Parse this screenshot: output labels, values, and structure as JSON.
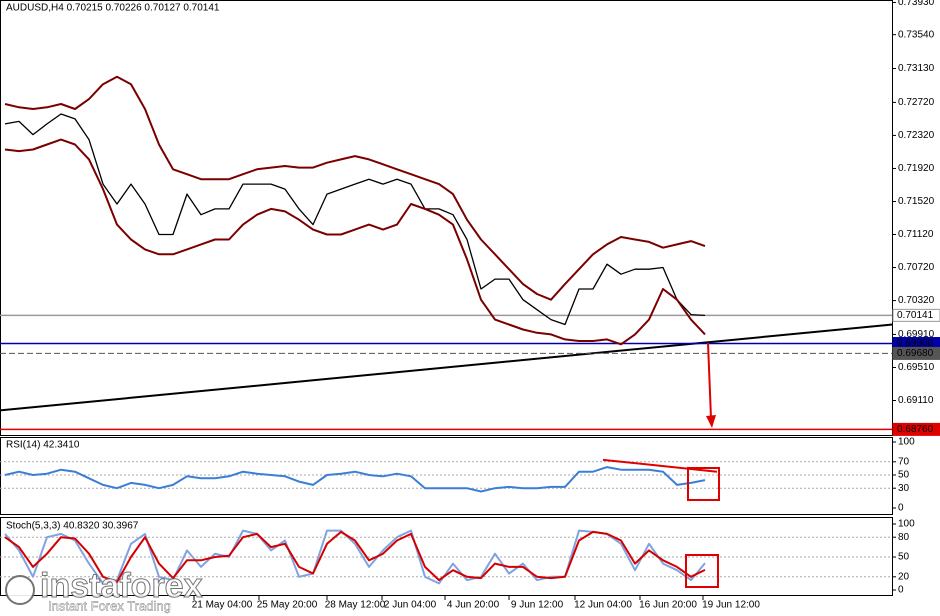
{
  "title": "AUDUSD,H4 0.70215 0.70226 0.70127 0.70141",
  "watermark": {
    "brand": "instaforex",
    "slogan": "Instant Forex Trading"
  },
  "time_labels": [
    "21 May 04:00",
    "25 May 20:00",
    "28 May 12:00",
    "2 Jun 04:00",
    "4 Jun 20:00",
    "9 Jun 12:00",
    "12 Jun 04:00",
    "16 Jun 20:00",
    "19 Jun 12:00"
  ],
  "chart_data": [
    {
      "type": "line",
      "series": [
        {
          "color": "#000000",
          "values": [
            0.7246,
            0.7249,
            0.7233,
            0.7246,
            0.7258,
            0.7252,
            0.7227,
            0.7173,
            0.7149,
            0.7173,
            0.7149,
            0.7112,
            0.7112,
            0.7161,
            0.7136,
            0.7143,
            0.7143,
            0.7173,
            0.7173,
            0.7173,
            0.7167,
            0.7143,
            0.7124,
            0.7161,
            0.7167,
            0.7173,
            0.7179,
            0.7173,
            0.7179,
            0.7173,
            0.7143,
            0.7143,
            0.7136,
            0.7106,
            0.7046,
            0.7058,
            0.7058,
            0.7033,
            0.7021,
            0.7009,
            0.7003,
            0.7046,
            0.7046,
            0.7076,
            0.7064,
            0.707,
            0.707,
            0.7072,
            0.7033,
            0.7015,
            0.70141
          ]
        },
        {
          "color": "#7a0000",
          "values": [
            0.727,
            0.7266,
            0.7264,
            0.7266,
            0.727,
            0.7264,
            0.7276,
            0.7294,
            0.7303,
            0.7294,
            0.7264,
            0.7221,
            0.7191,
            0.7185,
            0.7179,
            0.7179,
            0.7179,
            0.7185,
            0.7191,
            0.7193,
            0.7195,
            0.7193,
            0.7193,
            0.7199,
            0.7203,
            0.7207,
            0.7203,
            0.7197,
            0.7191,
            0.7185,
            0.7179,
            0.7173,
            0.7161,
            0.713,
            0.7106,
            0.7088,
            0.707,
            0.7052,
            0.704,
            0.7033,
            0.7052,
            0.707,
            0.7088,
            0.71,
            0.7109,
            0.7106,
            0.7103,
            0.7096,
            0.71,
            0.7104,
            0.7098
          ]
        },
        {
          "color": "#7a0000",
          "values": [
            0.7215,
            0.7213,
            0.7215,
            0.7221,
            0.7227,
            0.7221,
            0.7203,
            0.7167,
            0.7124,
            0.7106,
            0.7094,
            0.7088,
            0.7088,
            0.7094,
            0.71,
            0.7106,
            0.7106,
            0.7124,
            0.7136,
            0.7143,
            0.714,
            0.713,
            0.7118,
            0.7112,
            0.7112,
            0.7118,
            0.7124,
            0.7118,
            0.7124,
            0.7149,
            0.7143,
            0.7136,
            0.7124,
            0.7082,
            0.7033,
            0.7009,
            0.7003,
            0.6997,
            0.6993,
            0.6991,
            0.6985,
            0.6983,
            0.6983,
            0.6985,
            0.6979,
            0.6991,
            0.7009,
            0.7046,
            0.7033,
            0.7009,
            0.6991
          ]
        }
      ],
      "levels": [
        {
          "value": 0.70141,
          "label": "0.70141",
          "color": "#9a9a9a",
          "text_color": "#000000"
        },
        {
          "value": 0.698,
          "label": "0.69800",
          "color": "#0000aa",
          "text_color": "#ffffff"
        },
        {
          "value": 0.6968,
          "label": "0.69680",
          "color": "#555555",
          "text_color": "#ffffff",
          "style": "dashed"
        },
        {
          "value": 0.6876,
          "label": "0.68760",
          "color": "#e00000",
          "text_color": "#ffffff"
        }
      ],
      "trendline": {
        "color": "#000000",
        "values": [
          0.6899,
          0.7003
        ]
      },
      "ylim": [
        0.6868,
        0.7396
      ],
      "yticks": [
        {
          "value": 0.7393,
          "label": "0.73930"
        },
        {
          "value": 0.7354,
          "label": "0.73540"
        },
        {
          "value": 0.7313,
          "label": "0.73130"
        },
        {
          "value": 0.7272,
          "label": "0.72720"
        },
        {
          "value": 0.7232,
          "label": "0.72320"
        },
        {
          "value": 0.7192,
          "label": "0.71920"
        },
        {
          "value": 0.7152,
          "label": "0.71520"
        },
        {
          "value": 0.7112,
          "label": "0.71120"
        },
        {
          "value": 0.7072,
          "label": "0.70720"
        },
        {
          "value": 0.7032,
          "label": "0.70320"
        },
        {
          "value": 0.6991,
          "label": "0.69910"
        },
        {
          "value": 0.6951,
          "label": "0.69510"
        },
        {
          "value": 0.6911,
          "label": "0.69110"
        }
      ]
    },
    {
      "type": "line",
      "title": "RSI(14) 42.3410",
      "series": [
        {
          "color": "#3a7fd5",
          "values": [
            50,
            55,
            50,
            52,
            58,
            55,
            45,
            35,
            30,
            38,
            35,
            30,
            35,
            48,
            45,
            45,
            48,
            55,
            52,
            50,
            48,
            40,
            35,
            50,
            52,
            55,
            50,
            48,
            52,
            48,
            30,
            30,
            30,
            30,
            25,
            30,
            32,
            30,
            30,
            32,
            32,
            55,
            55,
            62,
            58,
            58,
            58,
            55,
            35,
            38,
            42.341
          ]
        }
      ],
      "trendline": {
        "color": "#e00000",
        "values": [
          73,
          55
        ]
      },
      "ylim": [
        0,
        100
      ],
      "yticks": [
        0,
        30,
        50,
        70,
        100
      ]
    },
    {
      "type": "line",
      "title": "Stoch(5,3,3) 40.8320 30.3967",
      "series": [
        {
          "color": "#7fa3e0",
          "values": [
            85,
            60,
            20,
            80,
            85,
            75,
            40,
            10,
            15,
            70,
            85,
            20,
            15,
            60,
            35,
            55,
            50,
            90,
            85,
            60,
            75,
            20,
            25,
            90,
            90,
            70,
            35,
            60,
            80,
            90,
            20,
            10,
            40,
            15,
            20,
            55,
            25,
            40,
            15,
            20,
            20,
            90,
            88,
            85,
            70,
            30,
            70,
            40,
            30,
            15,
            40.832
          ]
        },
        {
          "color": "#d40000",
          "values": [
            80,
            65,
            35,
            55,
            80,
            78,
            55,
            20,
            12,
            50,
            80,
            40,
            18,
            45,
            45,
            50,
            52,
            80,
            85,
            65,
            70,
            35,
            25,
            70,
            88,
            75,
            45,
            55,
            75,
            85,
            35,
            15,
            30,
            20,
            18,
            40,
            35,
            35,
            20,
            18,
            20,
            75,
            88,
            85,
            75,
            40,
            60,
            45,
            35,
            20,
            30.3967
          ]
        }
      ],
      "ylim": [
        0,
        100
      ],
      "yticks": [
        0,
        20,
        50,
        80,
        100
      ]
    }
  ]
}
